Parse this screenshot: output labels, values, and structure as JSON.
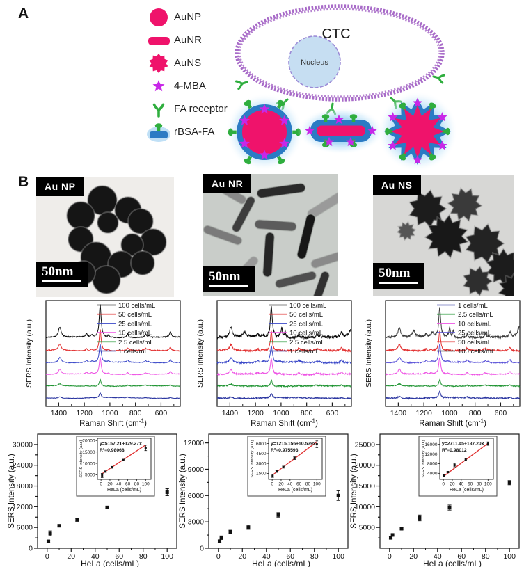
{
  "colors": {
    "pink": "#EF136B",
    "magenta_star": "#C827E8",
    "green": "#2FAE3E",
    "blue_coat": "#2B7BC4",
    "glow_blue": "#8CC6EE",
    "membrane_purple": "#A86BC8",
    "nucleus_fill": "#C6DEF2",
    "nucleus_border": "#9B8AD6",
    "fit_line_red": "#E03030",
    "axis_black": "#222222"
  },
  "panelA": {
    "label": "A",
    "cell_label": "CTC",
    "nucleus_label": "Nucleus",
    "legend": [
      {
        "icon": "aunp-sphere-icon",
        "label": "AuNP"
      },
      {
        "icon": "aunr-rod-icon",
        "label": "AuNR"
      },
      {
        "icon": "auns-star-icon",
        "label": "AuNS"
      },
      {
        "icon": "mba-star-icon",
        "label": "4-MBA"
      },
      {
        "icon": "fa-receptor-icon",
        "label": "FA receptor"
      },
      {
        "icon": "rbsa-fa-icon",
        "label": "rBSA-FA"
      }
    ]
  },
  "panelB": {
    "label": "B",
    "tem": [
      {
        "title": "Au NP",
        "scale_bar": "50nm"
      },
      {
        "title": "Au NR",
        "scale_bar": "50nm"
      },
      {
        "title": "Au NS",
        "scale_bar": "50nm"
      }
    ]
  },
  "chart_data": [
    {
      "id": "sers-aunp",
      "type": "line",
      "xlabel": "Raman Shift (cm⁻¹)",
      "ylabel": "SERS Intensity (a.u.)",
      "x_range": [
        1500,
        450
      ],
      "x_reversed": true,
      "x_ticks": [
        1400,
        1200,
        1000,
        800,
        600
      ],
      "x_minor_ticks": [
        1500,
        1300,
        1100,
        900,
        700,
        500
      ],
      "peaks": [
        {
          "c": 1392,
          "a": 0.3,
          "w": 13
        },
        {
          "c": 1183,
          "a": 0.1,
          "w": 8
        },
        {
          "c": 1142,
          "a": 0.07,
          "w": 7
        },
        {
          "c": 1076,
          "a": 1.0,
          "w": 9
        },
        {
          "c": 1012,
          "a": 0.06,
          "w": 6
        },
        {
          "c": 862,
          "a": 0.12,
          "w": 9
        },
        {
          "c": 722,
          "a": 0.1,
          "w": 9
        },
        {
          "c": 697,
          "a": 0.05,
          "w": 8
        },
        {
          "c": 527,
          "a": 0.16,
          "w": 9
        }
      ],
      "series": [
        {
          "label": "1 cells/mL",
          "color": "#2A35A0",
          "offset": 10,
          "scale": 7,
          "noise": 0.35
        },
        {
          "label": "2.5 cells/mL",
          "color": "#1F9432",
          "offset": 27,
          "scale": 10,
          "noise": 0.4
        },
        {
          "label": "10 cells/mL",
          "color": "#EE52E4",
          "offset": 44,
          "scale": 24,
          "noise": 0.45
        },
        {
          "label": "25 cells/mL",
          "color": "#3947C8",
          "offset": 61,
          "scale": 26,
          "noise": 0.5
        },
        {
          "label": "50 cells/mL",
          "color": "#E23030",
          "offset": 78,
          "scale": 30,
          "noise": 0.55
        },
        {
          "label": "100 cells/mL",
          "color": "#0B0B0B",
          "offset": 97,
          "scale": 47,
          "noise": 0.7
        }
      ],
      "top_series_extra_peaks": [],
      "legend_order": [
        5,
        4,
        3,
        2,
        1,
        0
      ]
    },
    {
      "id": "sers-aunr",
      "type": "line",
      "xlabel": "Raman Shift (cm⁻¹)",
      "ylabel": "SERS Intensity (a.u.)",
      "x_range": [
        1500,
        450
      ],
      "x_reversed": true,
      "x_ticks": [
        1400,
        1200,
        1000,
        800,
        600
      ],
      "x_minor_ticks": [
        1500,
        1300,
        1100,
        900,
        700,
        500
      ],
      "peaks": [
        {
          "c": 1392,
          "a": 0.3,
          "w": 13
        },
        {
          "c": 1183,
          "a": 0.1,
          "w": 8
        },
        {
          "c": 1142,
          "a": 0.07,
          "w": 7
        },
        {
          "c": 1076,
          "a": 1.0,
          "w": 9
        },
        {
          "c": 1012,
          "a": 0.06,
          "w": 6
        },
        {
          "c": 862,
          "a": 0.12,
          "w": 9
        },
        {
          "c": 722,
          "a": 0.1,
          "w": 9
        },
        {
          "c": 697,
          "a": 0.05,
          "w": 8
        },
        {
          "c": 527,
          "a": 0.16,
          "w": 9
        }
      ],
      "series": [
        {
          "label": "1 cells/mL",
          "color": "#2A35A0",
          "offset": 10,
          "scale": 6,
          "noise": 0.8
        },
        {
          "label": "2.5 cells/mL",
          "color": "#1F9432",
          "offset": 27,
          "scale": 9,
          "noise": 0.85
        },
        {
          "label": "10 cells/mL",
          "color": "#EE52E4",
          "offset": 44,
          "scale": 22,
          "noise": 1.0
        },
        {
          "label": "25 cells/mL",
          "color": "#3947C8",
          "offset": 61,
          "scale": 24,
          "noise": 1.1
        },
        {
          "label": "50 cells/mL",
          "color": "#E23030",
          "offset": 78,
          "scale": 27,
          "noise": 1.3
        },
        {
          "label": "100 cells/mL",
          "color": "#0B0B0B",
          "offset": 97,
          "scale": 44,
          "noise": 2.0
        }
      ],
      "top_series_extra_peaks": [
        {
          "c": 1285,
          "a": 0.16,
          "w": 16
        },
        {
          "c": 995,
          "a": 0.32,
          "w": 5
        },
        {
          "c": 968,
          "a": 0.22,
          "w": 5
        },
        {
          "c": 455,
          "a": 0.22,
          "w": 20
        }
      ],
      "legend_order": [
        5,
        4,
        3,
        2,
        1,
        0
      ]
    },
    {
      "id": "sers-auns",
      "type": "line",
      "xlabel": "Raman Shift (cm⁻¹)",
      "ylabel": "SERS Intensity (a.u.)",
      "x_range": [
        1500,
        450
      ],
      "x_reversed": true,
      "x_ticks": [
        1400,
        1200,
        1000,
        800,
        600
      ],
      "x_minor_ticks": [
        1500,
        1300,
        1100,
        900,
        700,
        500
      ],
      "peaks": [
        {
          "c": 1392,
          "a": 0.3,
          "w": 13
        },
        {
          "c": 1183,
          "a": 0.1,
          "w": 8
        },
        {
          "c": 1142,
          "a": 0.07,
          "w": 7
        },
        {
          "c": 1076,
          "a": 1.0,
          "w": 9
        },
        {
          "c": 1012,
          "a": 0.06,
          "w": 6
        },
        {
          "c": 862,
          "a": 0.12,
          "w": 9
        },
        {
          "c": 722,
          "a": 0.1,
          "w": 9
        },
        {
          "c": 697,
          "a": 0.05,
          "w": 8
        },
        {
          "c": 527,
          "a": 0.16,
          "w": 9
        }
      ],
      "series": [
        {
          "label": "1 cells/mL",
          "color": "#2A35A0",
          "offset": 10,
          "scale": 9,
          "noise": 0.9
        },
        {
          "label": "2.5 cells/mL",
          "color": "#1F9432",
          "offset": 27,
          "scale": 10,
          "noise": 0.6
        },
        {
          "label": "10 cells/mL",
          "color": "#EE52E4",
          "offset": 44,
          "scale": 24,
          "noise": 0.7
        },
        {
          "label": "25 cells/mL",
          "color": "#5A52D8",
          "offset": 61,
          "scale": 26,
          "noise": 0.8
        },
        {
          "label": "50 cells/mL",
          "color": "#E23030",
          "offset": 78,
          "scale": 28,
          "noise": 1.0
        },
        {
          "label": "100 cells/mL",
          "color": "#3A3A3A",
          "offset": 97,
          "scale": 42,
          "noise": 1.6
        }
      ],
      "top_series_extra_peaks": [
        {
          "c": 1280,
          "a": 0.22,
          "w": 14
        },
        {
          "c": 1130,
          "a": 0.12,
          "w": 10
        },
        {
          "c": 998,
          "a": 0.35,
          "w": 5
        },
        {
          "c": 970,
          "a": 0.25,
          "w": 5
        },
        {
          "c": 452,
          "a": 0.35,
          "w": 18
        }
      ],
      "legend_order": [
        0,
        1,
        2,
        3,
        4,
        5
      ]
    },
    {
      "id": "scatter-aunp",
      "type": "scatter",
      "xlabel": "HeLa (cells/mL)",
      "ylabel": "SERS Intensity (a.u.)",
      "x_ticks": [
        0,
        20,
        40,
        60,
        80,
        100
      ],
      "y_ticks": [
        0,
        6000,
        12000,
        18000,
        24000,
        30000
      ],
      "xlim": [
        -8,
        108
      ],
      "ylim": [
        0,
        33000
      ],
      "points": [
        {
          "x": 1,
          "y": 2000,
          "err": 250
        },
        {
          "x": 2.5,
          "y": 4300,
          "err": 700
        },
        {
          "x": 10,
          "y": 6500,
          "err": 250
        },
        {
          "x": 25,
          "y": 8200,
          "err": 400
        },
        {
          "x": 50,
          "y": 11800,
          "err": 300
        },
        {
          "x": 100,
          "y": 16200,
          "err": 1000
        }
      ],
      "inset": {
        "equation": "y=5157.21+129.27x",
        "r_squared": "R²=0.98068",
        "fit_intercept": 5157.21,
        "fit_slope": 129.27,
        "xlabel": "HeLa (cells/mL)",
        "ylabel": "SERS Intensity (a.u.)",
        "x_ticks": [
          0,
          20,
          40,
          60,
          80,
          100
        ],
        "y_ticks": [
          5000,
          10000,
          15000,
          20000
        ],
        "ylim": [
          3000,
          21000
        ],
        "points": [
          {
            "x": 2.5,
            "y": 4700,
            "err": 900
          },
          {
            "x": 10,
            "y": 6400,
            "err": 300
          },
          {
            "x": 25,
            "y": 8300,
            "err": 400
          },
          {
            "x": 50,
            "y": 11500,
            "err": 300
          },
          {
            "x": 100,
            "y": 16800,
            "err": 1200
          }
        ]
      }
    },
    {
      "id": "scatter-aunr",
      "type": "scatter",
      "xlabel": "HeLa (cells/mL)",
      "ylabel": "SERS Intensity (a.u.)",
      "x_ticks": [
        0,
        20,
        40,
        60,
        80,
        100
      ],
      "y_ticks": [
        0,
        3000,
        6000,
        9000,
        12000
      ],
      "xlim": [
        -8,
        108
      ],
      "ylim": [
        0,
        13000
      ],
      "points": [
        {
          "x": 1,
          "y": 800,
          "err": 150
        },
        {
          "x": 2.5,
          "y": 1200,
          "err": 200
        },
        {
          "x": 10,
          "y": 1850,
          "err": 200
        },
        {
          "x": 25,
          "y": 2400,
          "err": 250
        },
        {
          "x": 50,
          "y": 3800,
          "err": 250
        },
        {
          "x": 100,
          "y": 6000,
          "err": 550
        }
      ],
      "inset": {
        "equation": "y=1215.156+50.539x",
        "r_squared": "R²=0.975593",
        "fit_intercept": 1215.156,
        "fit_slope": 50.539,
        "xlabel": "HeLa (cells/mL)",
        "ylabel": "SERS Intensity (a.u.)",
        "x_ticks": [
          0,
          20,
          40,
          60,
          80,
          100
        ],
        "y_ticks": [
          1500,
          3000,
          4500,
          6000
        ],
        "ylim": [
          600,
          6800
        ],
        "points": [
          {
            "x": 1,
            "y": 1150,
            "err": 250
          },
          {
            "x": 10,
            "y": 1800,
            "err": 150
          },
          {
            "x": 25,
            "y": 2450,
            "err": 150
          },
          {
            "x": 50,
            "y": 3800,
            "err": 200
          },
          {
            "x": 100,
            "y": 5900,
            "err": 500
          }
        ]
      }
    },
    {
      "id": "scatter-auns",
      "type": "scatter",
      "xlabel": "HeLa (cells/mL)",
      "ylabel": "SERS Intensity (a.u.)",
      "x_ticks": [
        0,
        20,
        40,
        60,
        80,
        100
      ],
      "y_ticks": [
        5000,
        10000,
        15000,
        20000,
        25000
      ],
      "xlim": [
        -8,
        108
      ],
      "ylim": [
        0,
        27500
      ],
      "points": [
        {
          "x": 1,
          "y": 2500,
          "err": 300
        },
        {
          "x": 2.5,
          "y": 3200,
          "err": 250
        },
        {
          "x": 10,
          "y": 4700,
          "err": 200
        },
        {
          "x": 25,
          "y": 7300,
          "err": 700
        },
        {
          "x": 50,
          "y": 9800,
          "err": 600
        },
        {
          "x": 100,
          "y": 15800,
          "err": 500
        }
      ],
      "inset": {
        "equation": "y=2711.45+137.20x",
        "r_squared": "R²=0.98012",
        "fit_intercept": 2711.45,
        "fit_slope": 137.2,
        "xlabel": "HeLa (cells/mL)",
        "ylabel": "SERS Intensity (a.u.)",
        "x_ticks": [
          0,
          20,
          40,
          60,
          80,
          100
        ],
        "y_ticks": [
          4000,
          8000,
          12000,
          16000
        ],
        "ylim": [
          1500,
          18500
        ],
        "points": [
          {
            "x": 1,
            "y": 3000,
            "err": 400
          },
          {
            "x": 10,
            "y": 4500,
            "err": 300
          },
          {
            "x": 25,
            "y": 7400,
            "err": 700
          },
          {
            "x": 50,
            "y": 9800,
            "err": 500
          },
          {
            "x": 100,
            "y": 16300,
            "err": 700
          }
        ]
      }
    }
  ]
}
